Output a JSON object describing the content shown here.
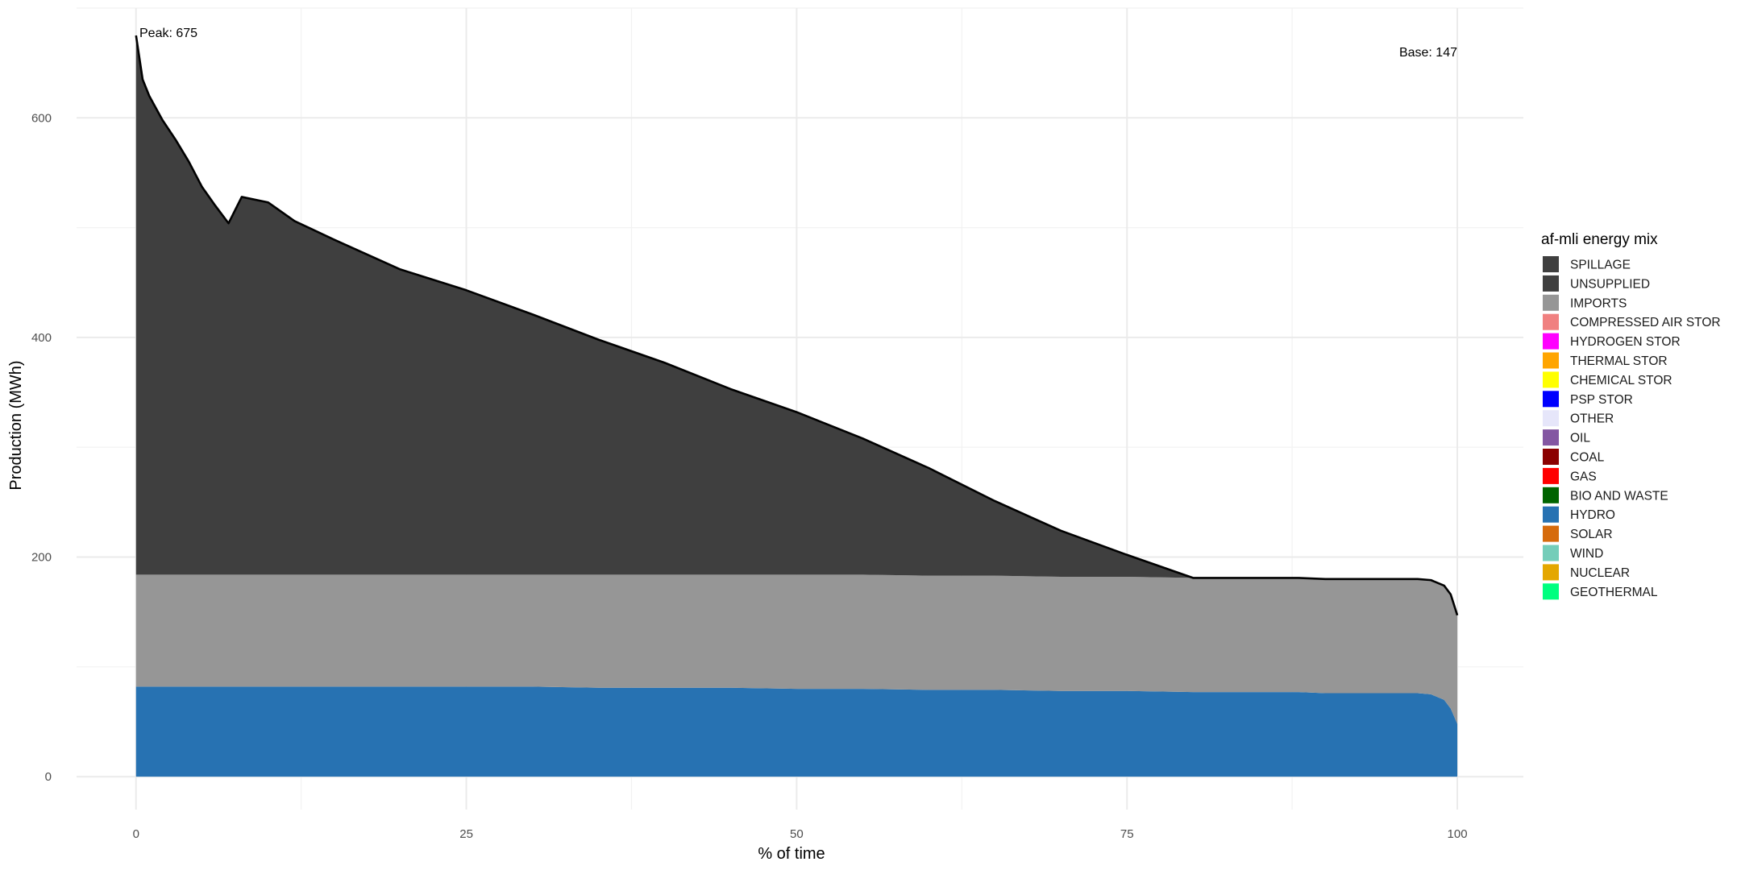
{
  "chart_data": {
    "type": "area",
    "title": "",
    "xlabel": "% of time",
    "ylabel": "Production (MWh)",
    "xlim": [
      -4.5,
      105
    ],
    "ylim": [
      -30,
      700
    ],
    "x_ticks": [
      0,
      25,
      50,
      75,
      100
    ],
    "y_ticks": [
      0,
      200,
      400,
      600
    ],
    "grid": true,
    "legend_position": "right",
    "legend": {
      "title": "af-mli energy mix",
      "entries": [
        {
          "label": "SPILLAGE",
          "color": "#3f3f3f"
        },
        {
          "label": "UNSUPPLIED",
          "color": "#3f3f3f"
        },
        {
          "label": "IMPORTS",
          "color": "#969696"
        },
        {
          "label": "COMPRESSED AIR STOR",
          "color": "#f08080"
        },
        {
          "label": "HYDROGEN STOR",
          "color": "#ff00ff"
        },
        {
          "label": "THERMAL STOR",
          "color": "#ffa500"
        },
        {
          "label": "CHEMICAL STOR",
          "color": "#ffff00"
        },
        {
          "label": "PSP STOR",
          "color": "#0000ff"
        },
        {
          "label": "OTHER",
          "color": "#e6e6fa"
        },
        {
          "label": "OIL",
          "color": "#8356a2"
        },
        {
          "label": "COAL",
          "color": "#8b0000"
        },
        {
          "label": "GAS",
          "color": "#ff0000"
        },
        {
          "label": "BIO AND WASTE",
          "color": "#006400"
        },
        {
          "label": "HYDRO",
          "color": "#2772b2"
        },
        {
          "label": "SOLAR",
          "color": "#d66b0d"
        },
        {
          "label": "WIND",
          "color": "#74cdb9"
        },
        {
          "label": "NUCLEAR",
          "color": "#e4a701"
        },
        {
          "label": "GEOTHERMAL",
          "color": "#00ff7f"
        }
      ]
    },
    "annotations": [
      {
        "text": "Peak: 675",
        "x": 1,
        "y": 690
      },
      {
        "text": "Base: 147",
        "x": 100,
        "y": 672
      }
    ],
    "x": [
      0,
      0.5,
      1,
      2,
      3,
      4,
      5,
      6,
      7,
      8,
      10,
      12,
      15,
      20,
      25,
      30,
      35,
      40,
      45,
      50,
      55,
      60,
      65,
      70,
      75,
      80,
      85,
      88,
      90,
      92,
      94,
      96,
      97,
      98,
      99,
      99.5,
      100
    ],
    "series": [
      {
        "name": "HYDRO",
        "color": "#2772b2",
        "values": [
          82,
          82,
          82,
          82,
          82,
          82,
          82,
          82,
          82,
          82,
          82,
          82,
          82,
          82,
          82,
          82,
          81,
          81,
          81,
          80,
          80,
          79,
          79,
          78,
          78,
          77,
          77,
          77,
          76,
          76,
          76,
          76,
          76,
          75,
          70,
          62,
          48
        ]
      },
      {
        "name": "IMPORTS",
        "color": "#969696",
        "values": [
          102,
          102,
          102,
          102,
          102,
          102,
          102,
          102,
          102,
          102,
          102,
          102,
          102,
          102,
          102,
          102,
          103,
          103,
          103,
          104,
          104,
          104,
          104,
          104,
          104,
          104,
          104,
          104,
          104,
          104,
          104,
          104,
          104,
          104,
          104,
          104,
          99
        ]
      },
      {
        "name": "UNSUPPLIED",
        "color": "#3f3f3f",
        "values": [
          491,
          451,
          436,
          414,
          396,
          376,
          353,
          336,
          320,
          344,
          339,
          322,
          305,
          278,
          259,
          237,
          214,
          193,
          169,
          148,
          124,
          97,
          68,
          42,
          20,
          0,
          0,
          0,
          0,
          0,
          0,
          0,
          0,
          0,
          0,
          0,
          0
        ]
      }
    ],
    "total": [
      675,
      635,
      620,
      598,
      580,
      560,
      537,
      520,
      504,
      528,
      523,
      506,
      489,
      462,
      443,
      421,
      398,
      377,
      353,
      332,
      308,
      281,
      251,
      224,
      202,
      181,
      181,
      181,
      180,
      180,
      180,
      180,
      180,
      179,
      174,
      166,
      147
    ]
  }
}
